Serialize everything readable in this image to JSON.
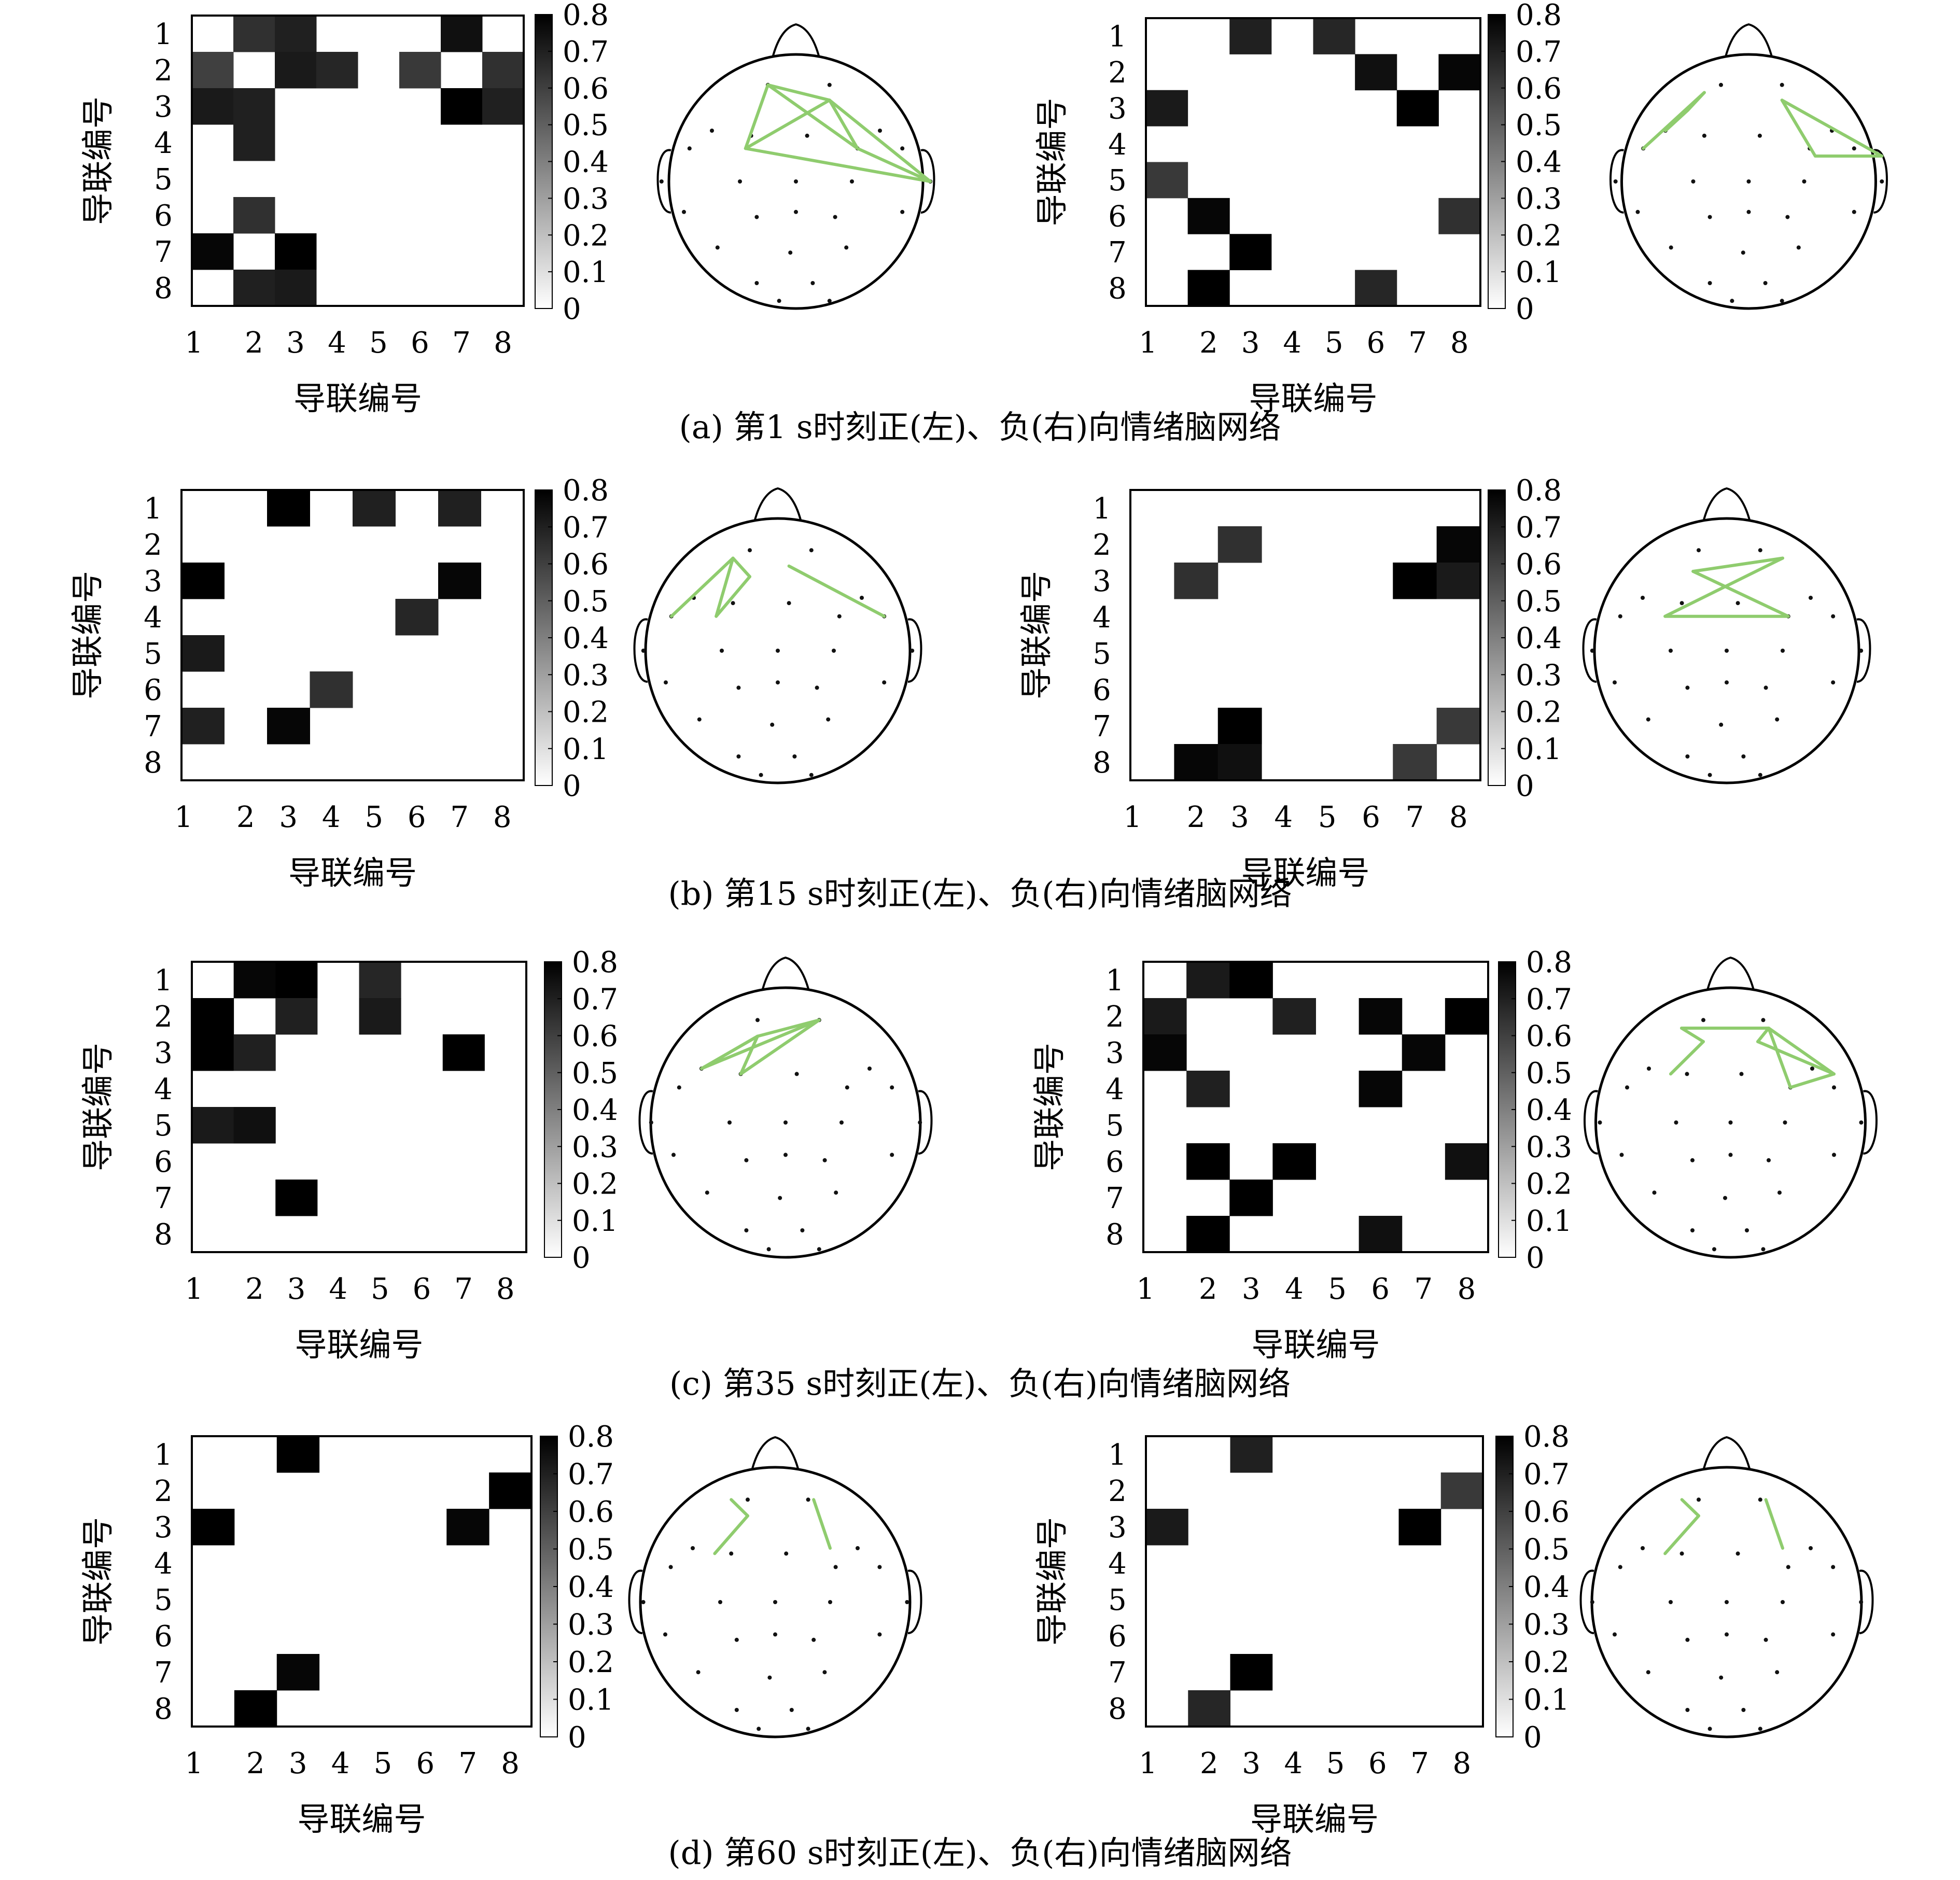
{
  "colorbar": {
    "ticks": [
      "0",
      "0.1",
      "0.2",
      "0.3",
      "0.4",
      "0.5",
      "0.6",
      "0.7",
      "0.8"
    ],
    "vmin": 0,
    "vmax": 0.8
  },
  "axis_ticks": [
    "1",
    "2",
    "3",
    "4",
    "5",
    "6",
    "7",
    "8"
  ],
  "edge_color": "#8fcc6e",
  "chart_data": [
    {
      "panel": "a",
      "caption": "(a)  第1 s时刻正(左)、负(右)向情绪脑网络",
      "maps": [
        {
          "type": "heatmap",
          "xlabel": "导联编号",
          "ylabel": "导联编号",
          "cells": [
            [
              1,
              2,
              0.65
            ],
            [
              1,
              3,
              0.7
            ],
            [
              1,
              7,
              0.75
            ],
            [
              2,
              1,
              0.6
            ],
            [
              2,
              3,
              0.72
            ],
            [
              2,
              4,
              0.68
            ],
            [
              2,
              6,
              0.62
            ],
            [
              2,
              8,
              0.65
            ],
            [
              3,
              1,
              0.72
            ],
            [
              3,
              2,
              0.7
            ],
            [
              3,
              7,
              0.8
            ],
            [
              3,
              8,
              0.7
            ],
            [
              4,
              2,
              0.7
            ],
            [
              6,
              2,
              0.65
            ],
            [
              7,
              1,
              0.78
            ],
            [
              7,
              3,
              0.8
            ],
            [
              8,
              2,
              0.7
            ],
            [
              8,
              3,
              0.72
            ]
          ],
          "edges": [
            [
              0.4,
              0.12,
              0.62,
              0.18
            ],
            [
              0.4,
              0.12,
              0.32,
              0.37
            ],
            [
              0.4,
              0.12,
              0.72,
              0.37
            ],
            [
              0.62,
              0.18,
              0.32,
              0.37
            ],
            [
              0.62,
              0.18,
              0.72,
              0.37
            ],
            [
              0.62,
              0.18,
              0.98,
              0.5
            ],
            [
              0.72,
              0.37,
              0.98,
              0.5
            ],
            [
              0.32,
              0.37,
              0.98,
              0.5
            ]
          ]
        },
        {
          "type": "heatmap",
          "xlabel": "导联编号",
          "ylabel": "导联编号",
          "cells": [
            [
              1,
              3,
              0.7
            ],
            [
              1,
              5,
              0.68
            ],
            [
              2,
              6,
              0.75
            ],
            [
              2,
              8,
              0.78
            ],
            [
              3,
              1,
              0.72
            ],
            [
              3,
              7,
              0.8
            ],
            [
              5,
              1,
              0.62
            ],
            [
              6,
              2,
              0.78
            ],
            [
              6,
              8,
              0.65
            ],
            [
              7,
              3,
              0.8
            ],
            [
              8,
              2,
              0.8
            ],
            [
              8,
              6,
              0.68
            ]
          ],
          "edges": [
            [
              0.12,
              0.37,
              0.34,
              0.15
            ],
            [
              0.28,
              0.22,
              0.34,
              0.15
            ],
            [
              0.28,
              0.22,
              0.2,
              0.3
            ],
            [
              0.62,
              0.18,
              0.74,
              0.4
            ],
            [
              0.74,
              0.4,
              0.98,
              0.4
            ],
            [
              0.62,
              0.18,
              0.98,
              0.4
            ]
          ]
        }
      ]
    },
    {
      "panel": "b",
      "caption": "(b)  第15 s时刻正(左)、负(右)向情绪脑网络",
      "maps": [
        {
          "type": "heatmap",
          "xlabel": "导联编号",
          "ylabel": "导联编号",
          "cells": [
            [
              1,
              3,
              0.8
            ],
            [
              1,
              5,
              0.7
            ],
            [
              1,
              7,
              0.7
            ],
            [
              3,
              1,
              0.8
            ],
            [
              3,
              7,
              0.78
            ],
            [
              4,
              6,
              0.68
            ],
            [
              5,
              1,
              0.72
            ],
            [
              6,
              4,
              0.65
            ],
            [
              7,
              1,
              0.7
            ],
            [
              7,
              3,
              0.78
            ]
          ],
          "edges": [
            [
              0.12,
              0.37,
              0.34,
              0.15
            ],
            [
              0.34,
              0.15,
              0.4,
              0.22
            ],
            [
              0.4,
              0.22,
              0.28,
              0.37
            ],
            [
              0.28,
              0.37,
              0.34,
              0.15
            ],
            [
              0.54,
              0.18,
              0.88,
              0.37
            ]
          ]
        },
        {
          "type": "heatmap",
          "xlabel": "导联编号",
          "ylabel": "导联编号",
          "cells": [
            [
              2,
              3,
              0.65
            ],
            [
              2,
              8,
              0.78
            ],
            [
              3,
              2,
              0.65
            ],
            [
              3,
              7,
              0.8
            ],
            [
              3,
              8,
              0.72
            ],
            [
              7,
              3,
              0.8
            ],
            [
              7,
              8,
              0.62
            ],
            [
              8,
              2,
              0.78
            ],
            [
              8,
              3,
              0.75
            ],
            [
              8,
              7,
              0.62
            ]
          ],
          "edges": [
            [
              0.38,
              0.2,
              0.7,
              0.15
            ],
            [
              0.38,
              0.2,
              0.72,
              0.37
            ],
            [
              0.7,
              0.15,
              0.28,
              0.37
            ],
            [
              0.28,
              0.37,
              0.72,
              0.37
            ]
          ]
        }
      ]
    },
    {
      "panel": "c",
      "caption": "(c)  第35 s时刻正(左)、负(右)向情绪脑网络",
      "maps": [
        {
          "type": "heatmap",
          "xlabel": "导联编号",
          "ylabel": "导联编号",
          "cells": [
            [
              1,
              2,
              0.78
            ],
            [
              1,
              3,
              0.8
            ],
            [
              1,
              5,
              0.68
            ],
            [
              2,
              1,
              0.8
            ],
            [
              2,
              3,
              0.7
            ],
            [
              2,
              5,
              0.72
            ],
            [
              3,
              1,
              0.8
            ],
            [
              3,
              2,
              0.7
            ],
            [
              3,
              7,
              0.8
            ],
            [
              5,
              1,
              0.72
            ],
            [
              5,
              2,
              0.75
            ],
            [
              7,
              3,
              0.8
            ]
          ],
          "edges": [
            [
              0.2,
              0.3,
              0.62,
              0.12
            ],
            [
              0.2,
              0.3,
              0.4,
              0.18
            ],
            [
              0.4,
              0.18,
              0.62,
              0.12
            ],
            [
              0.34,
              0.32,
              0.4,
              0.18
            ],
            [
              0.34,
              0.32,
              0.62,
              0.12
            ],
            [
              0.4,
              0.18,
              0.2,
              0.3
            ]
          ]
        },
        {
          "type": "heatmap",
          "xlabel": "导联编号",
          "ylabel": "导联编号",
          "cells": [
            [
              1,
              2,
              0.72
            ],
            [
              1,
              3,
              0.8
            ],
            [
              2,
              1,
              0.72
            ],
            [
              2,
              4,
              0.7
            ],
            [
              2,
              6,
              0.78
            ],
            [
              2,
              8,
              0.8
            ],
            [
              3,
              1,
              0.78
            ],
            [
              3,
              7,
              0.78
            ],
            [
              4,
              2,
              0.7
            ],
            [
              4,
              6,
              0.78
            ],
            [
              6,
              2,
              0.8
            ],
            [
              6,
              4,
              0.8
            ],
            [
              6,
              8,
              0.75
            ],
            [
              7,
              3,
              0.8
            ],
            [
              8,
              2,
              0.8
            ],
            [
              8,
              6,
              0.75
            ]
          ],
          "edges": [
            [
              0.32,
              0.15,
              0.64,
              0.15
            ],
            [
              0.32,
              0.15,
              0.4,
              0.2
            ],
            [
              0.4,
              0.2,
              0.28,
              0.32
            ],
            [
              0.64,
              0.15,
              0.6,
              0.2
            ],
            [
              0.64,
              0.15,
              0.72,
              0.37
            ],
            [
              0.6,
              0.2,
              0.88,
              0.32
            ],
            [
              0.72,
              0.37,
              0.88,
              0.32
            ],
            [
              0.64,
              0.15,
              0.88,
              0.32
            ]
          ]
        }
      ]
    },
    {
      "panel": "d",
      "caption": "(d)  第60 s时刻正(左)、负(右)向情绪脑网络",
      "maps": [
        {
          "type": "heatmap",
          "xlabel": "导联编号",
          "ylabel": "导联编号",
          "cells": [
            [
              1,
              3,
              0.8
            ],
            [
              2,
              8,
              0.8
            ],
            [
              3,
              1,
              0.8
            ],
            [
              3,
              7,
              0.78
            ],
            [
              7,
              3,
              0.78
            ],
            [
              8,
              2,
              0.8
            ]
          ],
          "edges": [
            [
              0.34,
              0.12,
              0.4,
              0.18
            ],
            [
              0.4,
              0.18,
              0.28,
              0.32
            ],
            [
              0.64,
              0.12,
              0.7,
              0.3
            ]
          ]
        },
        {
          "type": "heatmap",
          "xlabel": "导联编号",
          "ylabel": "导联编号",
          "cells": [
            [
              1,
              3,
              0.7
            ],
            [
              2,
              8,
              0.62
            ],
            [
              3,
              1,
              0.72
            ],
            [
              3,
              7,
              0.8
            ],
            [
              7,
              3,
              0.8
            ],
            [
              8,
              2,
              0.68
            ]
          ],
          "edges": [
            [
              0.34,
              0.12,
              0.4,
              0.18
            ],
            [
              0.4,
              0.18,
              0.28,
              0.32
            ],
            [
              0.64,
              0.12,
              0.7,
              0.3
            ]
          ]
        }
      ]
    }
  ]
}
